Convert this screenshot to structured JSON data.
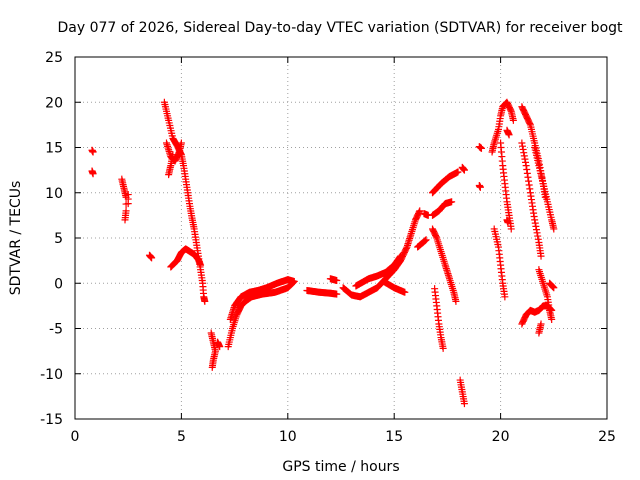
{
  "chart_data": {
    "type": "scatter",
    "title": "Day 077 of 2026, Sidereal Day-to-day VTEC variation (SDTVAR) for receiver bogt",
    "xlabel": "GPS time / hours",
    "ylabel": "SDTVAR / TECUs",
    "xlim": [
      0,
      25
    ],
    "ylim": [
      -15,
      25
    ],
    "xticks": [
      0,
      5,
      10,
      15,
      20,
      25
    ],
    "yticks": [
      -15,
      -10,
      -5,
      0,
      5,
      10,
      15,
      20,
      25
    ],
    "grid": true,
    "marker": "+",
    "color": "#ff0000",
    "series": [
      {
        "name": "SDTVAR",
        "tracks": [
          [
            [
              0.8,
              14.7
            ],
            [
              0.85,
              14.5
            ]
          ],
          [
            [
              0.8,
              12.4
            ],
            [
              0.85,
              12.1
            ]
          ],
          [
            [
              2.2,
              11.5
            ],
            [
              2.3,
              10.5
            ],
            [
              2.4,
              9.5
            ],
            [
              2.4,
              8.0
            ],
            [
              2.35,
              7.0
            ]
          ],
          [
            [
              2.5,
              9.8
            ],
            [
              2.5,
              8.8
            ]
          ],
          [
            [
              3.5,
              3.1
            ],
            [
              3.6,
              2.8
            ]
          ],
          [
            [
              4.2,
              20.0
            ],
            [
              4.4,
              18.0
            ],
            [
              4.6,
              16.0
            ],
            [
              4.8,
              15.2
            ],
            [
              5.0,
              14.2
            ],
            [
              5.1,
              13.0
            ],
            [
              5.2,
              11.5
            ],
            [
              5.3,
              10.0
            ],
            [
              5.4,
              8.5
            ],
            [
              5.5,
              7.2
            ],
            [
              5.6,
              6.0
            ],
            [
              5.7,
              4.5
            ],
            [
              5.8,
              3.0
            ],
            [
              5.9,
              1.5
            ],
            [
              6.0,
              0.0
            ],
            [
              6.05,
              -1.5
            ],
            [
              6.1,
              -2.0
            ]
          ],
          [
            [
              4.3,
              15.5
            ],
            [
              4.5,
              14.0
            ],
            [
              4.7,
              13.5
            ],
            [
              4.9,
              14.5
            ],
            [
              5.0,
              15.5
            ]
          ],
          [
            [
              4.4,
              12.0
            ],
            [
              4.5,
              13.0
            ],
            [
              4.6,
              14.2
            ]
          ],
          [
            [
              4.5,
              1.8
            ],
            [
              4.8,
              2.5
            ],
            [
              5.0,
              3.4
            ],
            [
              5.2,
              3.8
            ],
            [
              5.4,
              3.5
            ],
            [
              5.6,
              3.2
            ],
            [
              5.8,
              2.6
            ],
            [
              5.9,
              2.0
            ]
          ],
          [
            [
              6.4,
              -5.5
            ],
            [
              6.5,
              -6.5
            ],
            [
              6.6,
              -7.5
            ],
            [
              6.5,
              -8.5
            ],
            [
              6.45,
              -9.3
            ]
          ],
          [
            [
              6.7,
              -6.5
            ],
            [
              6.8,
              -7.0
            ]
          ],
          [
            [
              7.2,
              -7.0
            ],
            [
              7.4,
              -5.0
            ],
            [
              7.6,
              -3.5
            ],
            [
              7.8,
              -2.5
            ],
            [
              8.0,
              -2.0
            ],
            [
              8.3,
              -1.5
            ],
            [
              8.8,
              -1.2
            ],
            [
              9.4,
              -1.0
            ],
            [
              10.0,
              -0.5
            ],
            [
              10.3,
              0.2
            ]
          ],
          [
            [
              7.3,
              -4.0
            ],
            [
              7.5,
              -2.5
            ],
            [
              7.8,
              -1.5
            ],
            [
              8.2,
              -1.0
            ],
            [
              8.6,
              -0.8
            ],
            [
              9.0,
              -0.5
            ],
            [
              9.5,
              0.0
            ],
            [
              10.0,
              0.4
            ],
            [
              10.3,
              0.2
            ]
          ],
          [
            [
              10.9,
              -0.8
            ],
            [
              11.5,
              -1.0
            ],
            [
              12.0,
              -1.1
            ],
            [
              12.3,
              -1.2
            ]
          ],
          [
            [
              12.0,
              0.5
            ],
            [
              12.3,
              0.3
            ]
          ],
          [
            [
              12.6,
              -0.5
            ],
            [
              13.0,
              -1.3
            ],
            [
              13.4,
              -1.5
            ],
            [
              13.8,
              -1.0
            ],
            [
              14.2,
              -0.5
            ],
            [
              14.6,
              0.5
            ],
            [
              15.0,
              1.5
            ],
            [
              15.3,
              2.5
            ],
            [
              15.6,
              4.0
            ],
            [
              15.8,
              5.5
            ],
            [
              16.0,
              7.0
            ],
            [
              16.2,
              8.0
            ]
          ],
          [
            [
              13.2,
              -0.3
            ],
            [
              13.8,
              0.5
            ],
            [
              14.2,
              0.8
            ],
            [
              14.6,
              1.2
            ],
            [
              15.0,
              2.0
            ],
            [
              15.3,
              3.0
            ]
          ],
          [
            [
              14.5,
              0.2
            ],
            [
              15.0,
              -0.5
            ],
            [
              15.5,
              -1.0
            ]
          ],
          [
            [
              16.1,
              4.0
            ],
            [
              16.5,
              4.8
            ]
          ],
          [
            [
              16.4,
              7.7
            ],
            [
              16.6,
              7.5
            ]
          ],
          [
            [
              16.8,
              10.0
            ],
            [
              17.2,
              11.0
            ],
            [
              17.6,
              11.8
            ],
            [
              18.0,
              12.3
            ]
          ],
          [
            [
              16.8,
              7.5
            ],
            [
              17.1,
              8.0
            ],
            [
              17.4,
              8.8
            ],
            [
              17.7,
              9.0
            ]
          ],
          [
            [
              16.8,
              6.0
            ],
            [
              17.0,
              5.0
            ],
            [
              17.2,
              3.5
            ],
            [
              17.4,
              2.0
            ],
            [
              17.6,
              0.5
            ],
            [
              17.8,
              -1.0
            ],
            [
              17.9,
              -2.0
            ]
          ],
          [
            [
              16.9,
              -0.6
            ],
            [
              17.0,
              -2.5
            ],
            [
              17.1,
              -4.5
            ],
            [
              17.2,
              -6.0
            ],
            [
              17.3,
              -7.2
            ]
          ],
          [
            [
              18.1,
              -10.7
            ],
            [
              18.2,
              -12.0
            ],
            [
              18.3,
              -13.3
            ]
          ],
          [
            [
              18.2,
              12.8
            ],
            [
              18.3,
              12.5
            ]
          ],
          [
            [
              19.0,
              15.1
            ],
            [
              19.1,
              14.9
            ]
          ],
          [
            [
              19.0,
              10.8
            ],
            [
              19.05,
              10.6
            ]
          ],
          [
            [
              19.6,
              14.5
            ],
            [
              19.7,
              15.5
            ],
            [
              19.9,
              17.0
            ],
            [
              20.0,
              18.5
            ],
            [
              20.1,
              19.5
            ],
            [
              20.3,
              20.0
            ],
            [
              20.5,
              19.0
            ],
            [
              20.6,
              18.0
            ]
          ],
          [
            [
              19.7,
              6.0
            ],
            [
              19.9,
              4.0
            ],
            [
              20.0,
              2.0
            ],
            [
              20.1,
              0.0
            ],
            [
              20.2,
              -1.5
            ]
          ],
          [
            [
              20.0,
              15.5
            ],
            [
              20.1,
              13.0
            ],
            [
              20.2,
              11.0
            ],
            [
              20.3,
              9.0
            ],
            [
              20.4,
              7.5
            ],
            [
              20.5,
              6.0
            ]
          ],
          [
            [
              20.3,
              16.9
            ],
            [
              20.4,
              16.4
            ]
          ],
          [
            [
              20.3,
              7.0
            ],
            [
              20.35,
              6.7
            ]
          ],
          [
            [
              21.0,
              19.5
            ],
            [
              21.2,
              18.5
            ],
            [
              21.4,
              17.5
            ],
            [
              21.6,
              15.5
            ],
            [
              21.8,
              13.5
            ],
            [
              22.0,
              11.0
            ],
            [
              22.2,
              9.0
            ],
            [
              22.4,
              7.0
            ],
            [
              22.5,
              6.0
            ]
          ],
          [
            [
              21.0,
              15.5
            ],
            [
              21.2,
              13.0
            ],
            [
              21.4,
              10.0
            ],
            [
              21.6,
              7.0
            ],
            [
              21.8,
              4.5
            ],
            [
              21.9,
              3.0
            ]
          ],
          [
            [
              21.6,
              15.0
            ],
            [
              21.8,
              13.0
            ],
            [
              22.0,
              11.0
            ],
            [
              22.1,
              9.5
            ]
          ],
          [
            [
              21.0,
              -4.5
            ],
            [
              21.2,
              -3.5
            ],
            [
              21.4,
              -3.0
            ],
            [
              21.6,
              -3.2
            ],
            [
              21.8,
              -3.0
            ],
            [
              22.0,
              -2.5
            ],
            [
              22.2,
              -2.5
            ],
            [
              22.4,
              -3.0
            ]
          ],
          [
            [
              21.8,
              1.5
            ],
            [
              22.0,
              0.0
            ],
            [
              22.2,
              -1.5
            ],
            [
              22.3,
              -3.0
            ],
            [
              22.4,
              -4.0
            ]
          ],
          [
            [
              21.8,
              -5.5
            ],
            [
              21.9,
              -4.5
            ]
          ],
          [
            [
              22.3,
              0.0
            ],
            [
              22.5,
              -0.5
            ]
          ]
        ]
      }
    ]
  }
}
